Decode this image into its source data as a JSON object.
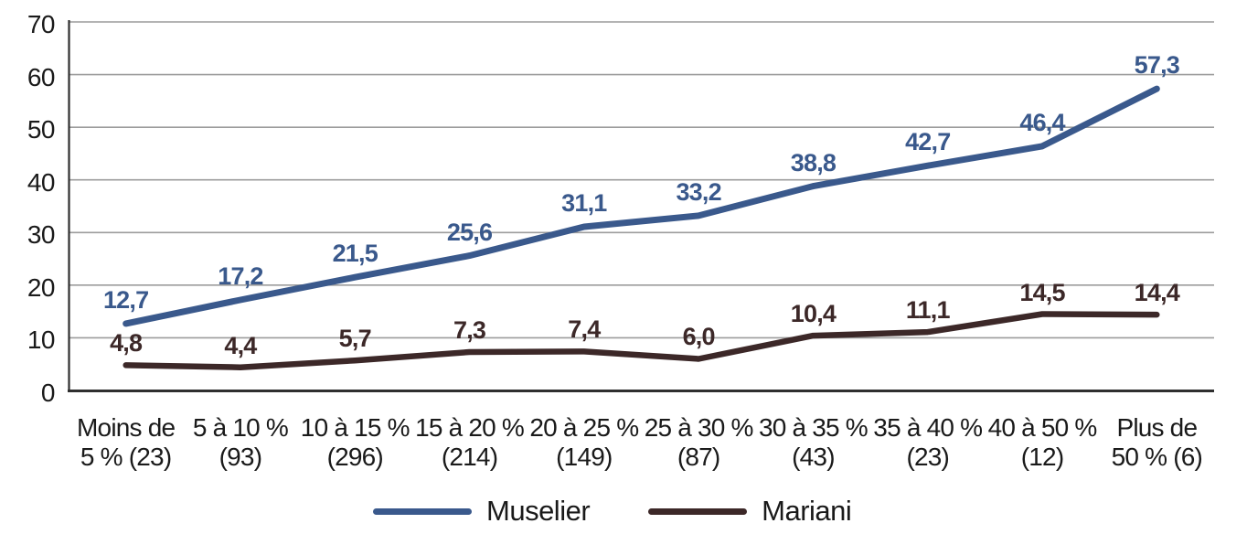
{
  "chart_data": {
    "type": "line",
    "title": "",
    "xlabel": "",
    "ylabel": "",
    "categories": [
      "Moins de 5 % (23)",
      "5 à 10 % (93)",
      "10 à 15 % (296)",
      "15 à 20 % (214)",
      "20 à 25 % (149)",
      "25 à 30 % (87)",
      "30 à 35 % (43)",
      "35 à 40 % (23)",
      "40 à 50 % (12)",
      "Plus de 50 % (6)"
    ],
    "category_label_lines": [
      [
        "Moins de",
        "5 % (23)"
      ],
      [
        "5 à 10 %",
        "(93)"
      ],
      [
        "10 à 15 %",
        "(296)"
      ],
      [
        "15 à 20 %",
        "(214)"
      ],
      [
        "20 à 25 %",
        "(149)"
      ],
      [
        "25 à 30 %",
        "(87)"
      ],
      [
        "30 à 35 %",
        "(43)"
      ],
      [
        "35 à 40 %",
        "(23)"
      ],
      [
        "40 à 50 %",
        "(12)"
      ],
      [
        "Plus de",
        "50 % (6)"
      ]
    ],
    "series": [
      {
        "name": "Muselier",
        "color": "#3A598C",
        "values": [
          12.7,
          17.2,
          21.5,
          25.6,
          31.1,
          33.2,
          38.8,
          42.7,
          46.4,
          57.3
        ],
        "labels": [
          "12,7",
          "17,2",
          "21,5",
          "25,6",
          "31,1",
          "33,2",
          "38,8",
          "42,7",
          "46,4",
          "57,3"
        ]
      },
      {
        "name": "Mariani",
        "color": "#3C2828",
        "values": [
          4.8,
          4.4,
          5.7,
          7.3,
          7.4,
          6.0,
          10.4,
          11.1,
          14.5,
          14.4
        ],
        "labels": [
          "4,8",
          "4,4",
          "5,7",
          "7,3",
          "7,4",
          "6,0",
          "10,4",
          "11,1",
          "14,5",
          "14,4"
        ]
      }
    ],
    "ylim": [
      0,
      70
    ],
    "yticks": [
      0,
      10,
      20,
      30,
      40,
      50,
      60,
      70
    ],
    "ytick_labels": [
      "0",
      "10",
      "20",
      "30",
      "40",
      "50",
      "60",
      "70"
    ],
    "grid": true,
    "grid_color": "#9C9C9C",
    "axis_color": "#2F2F2F",
    "legend_position": "bottom"
  },
  "legend": {
    "items": [
      {
        "label": "Muselier",
        "color": "#3A598C"
      },
      {
        "label": "Mariani",
        "color": "#3C2828"
      }
    ]
  }
}
